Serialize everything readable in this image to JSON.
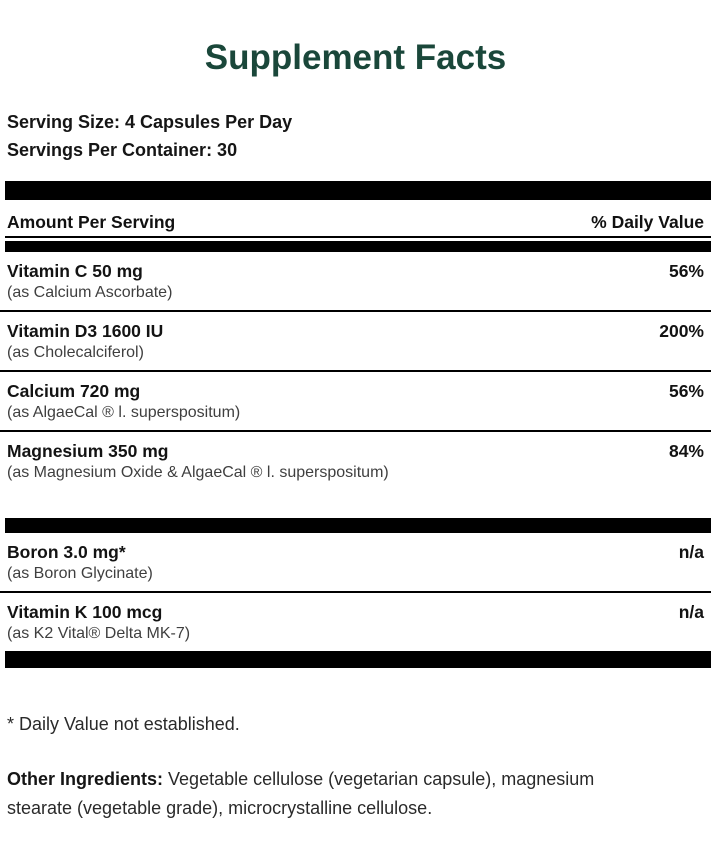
{
  "colors": {
    "title_green": "#1A473A",
    "bar_black": "#000000"
  },
  "title": "Supplement Facts",
  "serving": {
    "size_line": "Serving Size: 4 Capsules Per Day",
    "container_line": "Servings Per Container: 30"
  },
  "table": {
    "header": {
      "left": "Amount Per Serving",
      "right": "% Daily Value"
    },
    "rows": [
      {
        "name": "Vitamin C 50 mg",
        "source": "(as Calcium Ascorbate)",
        "daily_value": "56%"
      },
      {
        "name": "Vitamin D3 1600 IU",
        "source": "(as Cholecalciferol)",
        "daily_value": "200%"
      },
      {
        "name": "Calcium 720 mg",
        "source": "(as AlgaeCal ® l. superspositum)",
        "daily_value": "56%"
      },
      {
        "name": "Magnesium 350 mg",
        "source": "(as Magnesium Oxide & AlgaeCal ® l. superspositum)",
        "daily_value": "84%"
      },
      {
        "name": "Boron 3.0 mg*",
        "source": "(as Boron Glycinate)",
        "daily_value": "n/a"
      },
      {
        "name": "Vitamin K 100 mcg",
        "source": "(as K2 Vital® Delta MK-7)",
        "daily_value": "n/a"
      }
    ]
  },
  "footnotes": {
    "daily_value_note": "* Daily Value not established.",
    "other_ingredients_label": "Other Ingredients:",
    "other_ingredients_text": "Vegetable cellulose (vegetarian capsule), magnesium stearate (vegetable grade), microcrystalline cellulose."
  }
}
